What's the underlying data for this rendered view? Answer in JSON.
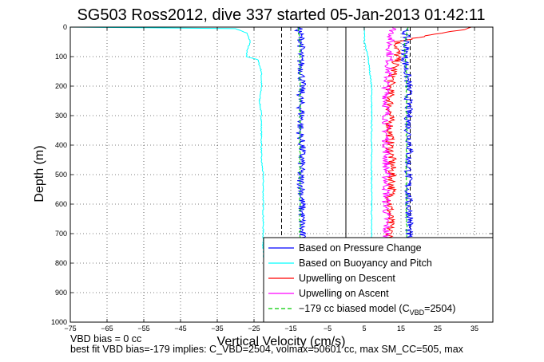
{
  "chart_data": {
    "type": "line",
    "title": "SG503 Ross2012, dive 337 started 05-Jan-2013 01:42:11",
    "xlabel": "Vertical Velocity (cm/s)",
    "ylabel": "Depth (m)",
    "xlim": [
      -75,
      40
    ],
    "ylim": [
      1000,
      0
    ],
    "xticks": [
      -75,
      -65,
      -55,
      -45,
      -35,
      -25,
      -15,
      -5,
      5,
      15,
      25,
      35
    ],
    "yticks": [
      0,
      100,
      200,
      300,
      400,
      500,
      600,
      700,
      800,
      900,
      1000
    ],
    "grid": true,
    "legend_position": "bottom-right",
    "reference_lines": [
      {
        "x": 0,
        "style": "solid",
        "color": "#000000"
      },
      {
        "x": -17.5,
        "style": "dashed",
        "color": "#000000"
      },
      {
        "x": 17.5,
        "style": "dashed",
        "color": "#000000"
      }
    ],
    "series": [
      {
        "name": "Based on Pressure Change",
        "color": "#0000ff",
        "style": "solid",
        "profiles": [
          {
            "depth": [
              0,
              50,
              100,
              150,
              200,
              250,
              300,
              350,
              400,
              450,
              500,
              550,
              600,
              650,
              700,
              750,
              780
            ],
            "velocity": [
              -13,
              -12,
              -12.5,
              -12,
              -12,
              -12.5,
              -12,
              -12.5,
              -12,
              -12,
              -12.5,
              -12,
              -12,
              -12,
              -12,
              -12,
              -12
            ]
          },
          {
            "depth": [
              5,
              50,
              100,
              150,
              200,
              250,
              300,
              350,
              400,
              450,
              500,
              550,
              600,
              650,
              700,
              750,
              780
            ],
            "velocity": [
              16,
              16.5,
              16,
              16.5,
              17,
              17,
              17,
              17,
              17.5,
              17,
              17,
              17,
              17,
              17.5,
              17,
              17,
              17
            ]
          }
        ]
      },
      {
        "name": "Based on Buoyancy and Pitch",
        "color": "#00ffff",
        "style": "solid",
        "profiles": [
          {
            "depth": [
              0,
              5,
              20,
              50,
              80,
              100,
              110,
              150,
              200,
              250,
              300,
              350,
              400,
              450,
              500,
              550,
              600,
              650,
              700,
              750,
              780
            ],
            "velocity": [
              -75,
              -30,
              -27,
              -26,
              -27,
              -27,
              -24,
              -23,
              -23,
              -23.5,
              -23,
              -23,
              -23,
              -23,
              -22.5,
              -22.5,
              -22.5,
              -22.5,
              -22.5,
              -22.5,
              -22.5
            ]
          },
          {
            "depth": [
              0,
              20,
              50,
              100,
              150,
              200,
              300,
              400,
              500,
              600,
              700,
              730
            ],
            "velocity": [
              5,
              5,
              5,
              6,
              6.5,
              7,
              7,
              7,
              7,
              7,
              7,
              7
            ]
          }
        ]
      },
      {
        "name": "Upwelling on Descent",
        "color": "#ff0000",
        "style": "solid",
        "profiles": [
          {
            "depth": [
              0,
              50,
              100,
              150,
              200,
              250,
              300,
              350,
              400,
              450,
              500,
              550,
              600,
              650,
              700,
              750,
              780
            ],
            "velocity": [
              35,
              14,
              14,
              13,
              12,
              12,
              12,
              12,
              12,
              12.5,
              12.5,
              12.5,
              12,
              12,
              12,
              12,
              12
            ]
          }
        ]
      },
      {
        "name": "Upwelling on Ascent",
        "color": "#ff00ff",
        "style": "solid",
        "profiles": [
          {
            "depth": [
              0,
              50,
              100,
              150,
              200,
              250,
              300,
              350,
              400,
              450,
              500,
              550,
              600,
              650,
              700,
              750,
              780
            ],
            "velocity": [
              13,
              12,
              12,
              11.5,
              11,
              11,
              11,
              11,
              11,
              11,
              11,
              11,
              11,
              11,
              11,
              11,
              11
            ]
          }
        ]
      },
      {
        "name": "−179 cc biased model (C",
        "name_sub": "VBD",
        "name_suffix": "=2504)",
        "color": "#00cc00",
        "style": "dashed",
        "profiles": [
          {
            "depth": [
              0,
              50,
              100,
              150,
              200,
              250,
              300,
              350,
              400,
              450,
              500,
              550,
              600,
              650,
              700,
              750,
              780
            ],
            "velocity": [
              -13,
              -12.5,
              -12.5,
              -12.5,
              -12.5,
              -12.5,
              -12.5,
              -12.5,
              -12.5,
              -12.5,
              -12.5,
              -12.5,
              -12.5,
              -12.5,
              -12.5,
              -12.5,
              -12.5
            ]
          },
          {
            "depth": [
              0,
              50,
              100,
              150,
              200,
              250,
              300,
              350,
              400,
              450,
              500,
              550,
              600,
              650,
              700,
              750,
              780
            ],
            "velocity": [
              17,
              16,
              16,
              16.5,
              16.5,
              16.5,
              16.5,
              16.5,
              16.5,
              16.5,
              16.5,
              16.5,
              16.5,
              16.5,
              16.5,
              16.5,
              16.5
            ]
          }
        ]
      }
    ]
  },
  "footer": {
    "line1": "VBD bias = 0 cc",
    "line2": "best fit VBD bias=-179 implies: C_VBD=2504, volmax=50601 cc, max SM_CC=505, max"
  }
}
